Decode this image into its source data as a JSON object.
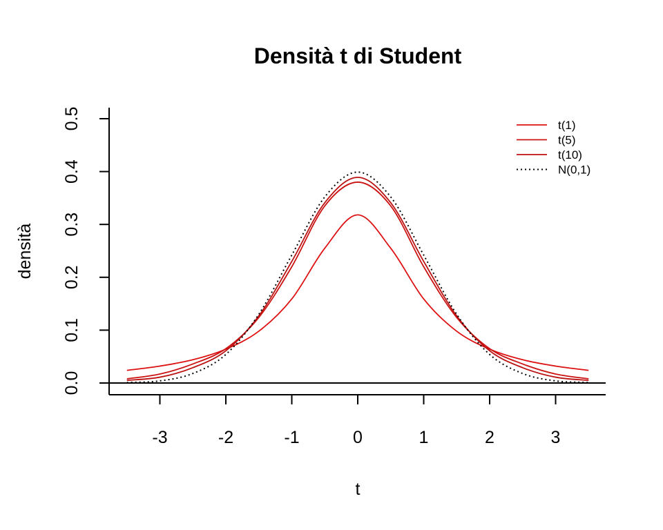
{
  "chart_data": {
    "type": "line",
    "title": "Densità t di Student",
    "xlabel": "t",
    "ylabel": "densità",
    "xlim": [
      -3.5,
      3.5
    ],
    "ylim": [
      0,
      0.5
    ],
    "x_ticks": [
      -3,
      -2,
      -1,
      0,
      1,
      2,
      3
    ],
    "x_tick_labels": [
      "-3",
      "-2",
      "-1",
      "0",
      "1",
      "2",
      "3"
    ],
    "y_ticks": [
      0,
      0.1,
      0.2,
      0.3,
      0.4,
      0.5
    ],
    "y_tick_labels": [
      "0.0",
      "0.1",
      "0.2",
      "0.3",
      "0.4",
      "0.5"
    ],
    "grid": false,
    "baseline": 0,
    "legend_position": "top-right",
    "x": [
      -3.5,
      -3,
      -2.5,
      -2,
      -1.5,
      -1,
      -0.5,
      0,
      0.5,
      1,
      1.5,
      2,
      2.5,
      3,
      3.5
    ],
    "series": [
      {
        "name": "t(1)",
        "color": "#dd1111",
        "dash": "solid",
        "values": [
          0.024,
          0.032,
          0.044,
          0.064,
          0.098,
          0.159,
          0.255,
          0.318,
          0.255,
          0.159,
          0.098,
          0.064,
          0.044,
          0.032,
          0.024
        ]
      },
      {
        "name": "t(5)",
        "color": "#cc1111",
        "dash": "solid",
        "values": [
          0.008,
          0.017,
          0.036,
          0.065,
          0.124,
          0.22,
          0.335,
          0.38,
          0.335,
          0.22,
          0.124,
          0.065,
          0.036,
          0.017,
          0.008
        ]
      },
      {
        "name": "t(10)",
        "color": "#bb1111",
        "dash": "solid",
        "values": [
          0.005,
          0.011,
          0.029,
          0.061,
          0.127,
          0.23,
          0.341,
          0.389,
          0.341,
          0.23,
          0.127,
          0.061,
          0.029,
          0.011,
          0.005
        ]
      },
      {
        "name": "N(0,1)",
        "color": "#000000",
        "dash": "dotted",
        "values": [
          0.001,
          0.004,
          0.018,
          0.054,
          0.13,
          0.242,
          0.352,
          0.399,
          0.352,
          0.242,
          0.13,
          0.054,
          0.018,
          0.004,
          0.001
        ]
      }
    ]
  }
}
